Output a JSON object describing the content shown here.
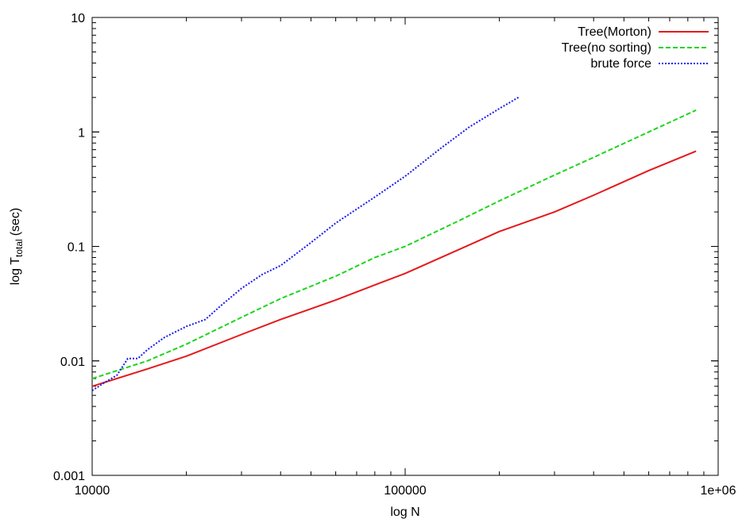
{
  "chart_data": {
    "type": "line",
    "xscale": "log",
    "yscale": "log",
    "xlim": [
      10000,
      1000000
    ],
    "ylim": [
      0.001,
      10
    ],
    "xlabel": "log N",
    "ylabel_main": "log T",
    "ylabel_sub": "total",
    "ylabel_unit": "(sec)",
    "x_ticks": [
      {
        "value": 10000,
        "label": "10000"
      },
      {
        "value": 100000,
        "label": "100000"
      },
      {
        "value": 1000000,
        "label": "1e+06"
      }
    ],
    "y_ticks": [
      {
        "value": 0.001,
        "label": "0.001"
      },
      {
        "value": 0.01,
        "label": "0.01"
      },
      {
        "value": 0.1,
        "label": "0.1"
      },
      {
        "value": 1,
        "label": "1"
      },
      {
        "value": 10,
        "label": "10"
      }
    ],
    "grid": false,
    "legend_position": "top-right",
    "series": [
      {
        "name": "Tree(Morton)",
        "color": "#e41a1c",
        "dash": "solid",
        "x": [
          10000,
          15000,
          20000,
          30000,
          40000,
          60000,
          80000,
          100000,
          150000,
          200000,
          300000,
          400000,
          600000,
          850000
        ],
        "y": [
          0.006,
          0.0085,
          0.011,
          0.017,
          0.023,
          0.034,
          0.046,
          0.058,
          0.095,
          0.135,
          0.2,
          0.28,
          0.46,
          0.68
        ]
      },
      {
        "name": "Tree(no sorting)",
        "color": "#1fd51f",
        "dash": "dashed",
        "x": [
          10000,
          15000,
          20000,
          30000,
          40000,
          60000,
          80000,
          100000,
          150000,
          200000,
          300000,
          400000,
          600000,
          850000
        ],
        "y": [
          0.007,
          0.01,
          0.014,
          0.024,
          0.035,
          0.055,
          0.08,
          0.1,
          0.17,
          0.25,
          0.42,
          0.6,
          1.0,
          1.55
        ]
      },
      {
        "name": "brute force",
        "color": "#1a1aee",
        "dash": "dotted",
        "x": [
          10000,
          11000,
          12000,
          13000,
          14000,
          15000,
          17000,
          20000,
          23000,
          26000,
          30000,
          35000,
          40000,
          50000,
          60000,
          80000,
          100000,
          130000,
          160000,
          200000,
          230000
        ],
        "y": [
          0.0055,
          0.0065,
          0.0075,
          0.0105,
          0.0105,
          0.0125,
          0.016,
          0.02,
          0.023,
          0.031,
          0.043,
          0.057,
          0.068,
          0.108,
          0.16,
          0.27,
          0.41,
          0.72,
          1.1,
          1.6,
          2.0
        ]
      }
    ]
  }
}
